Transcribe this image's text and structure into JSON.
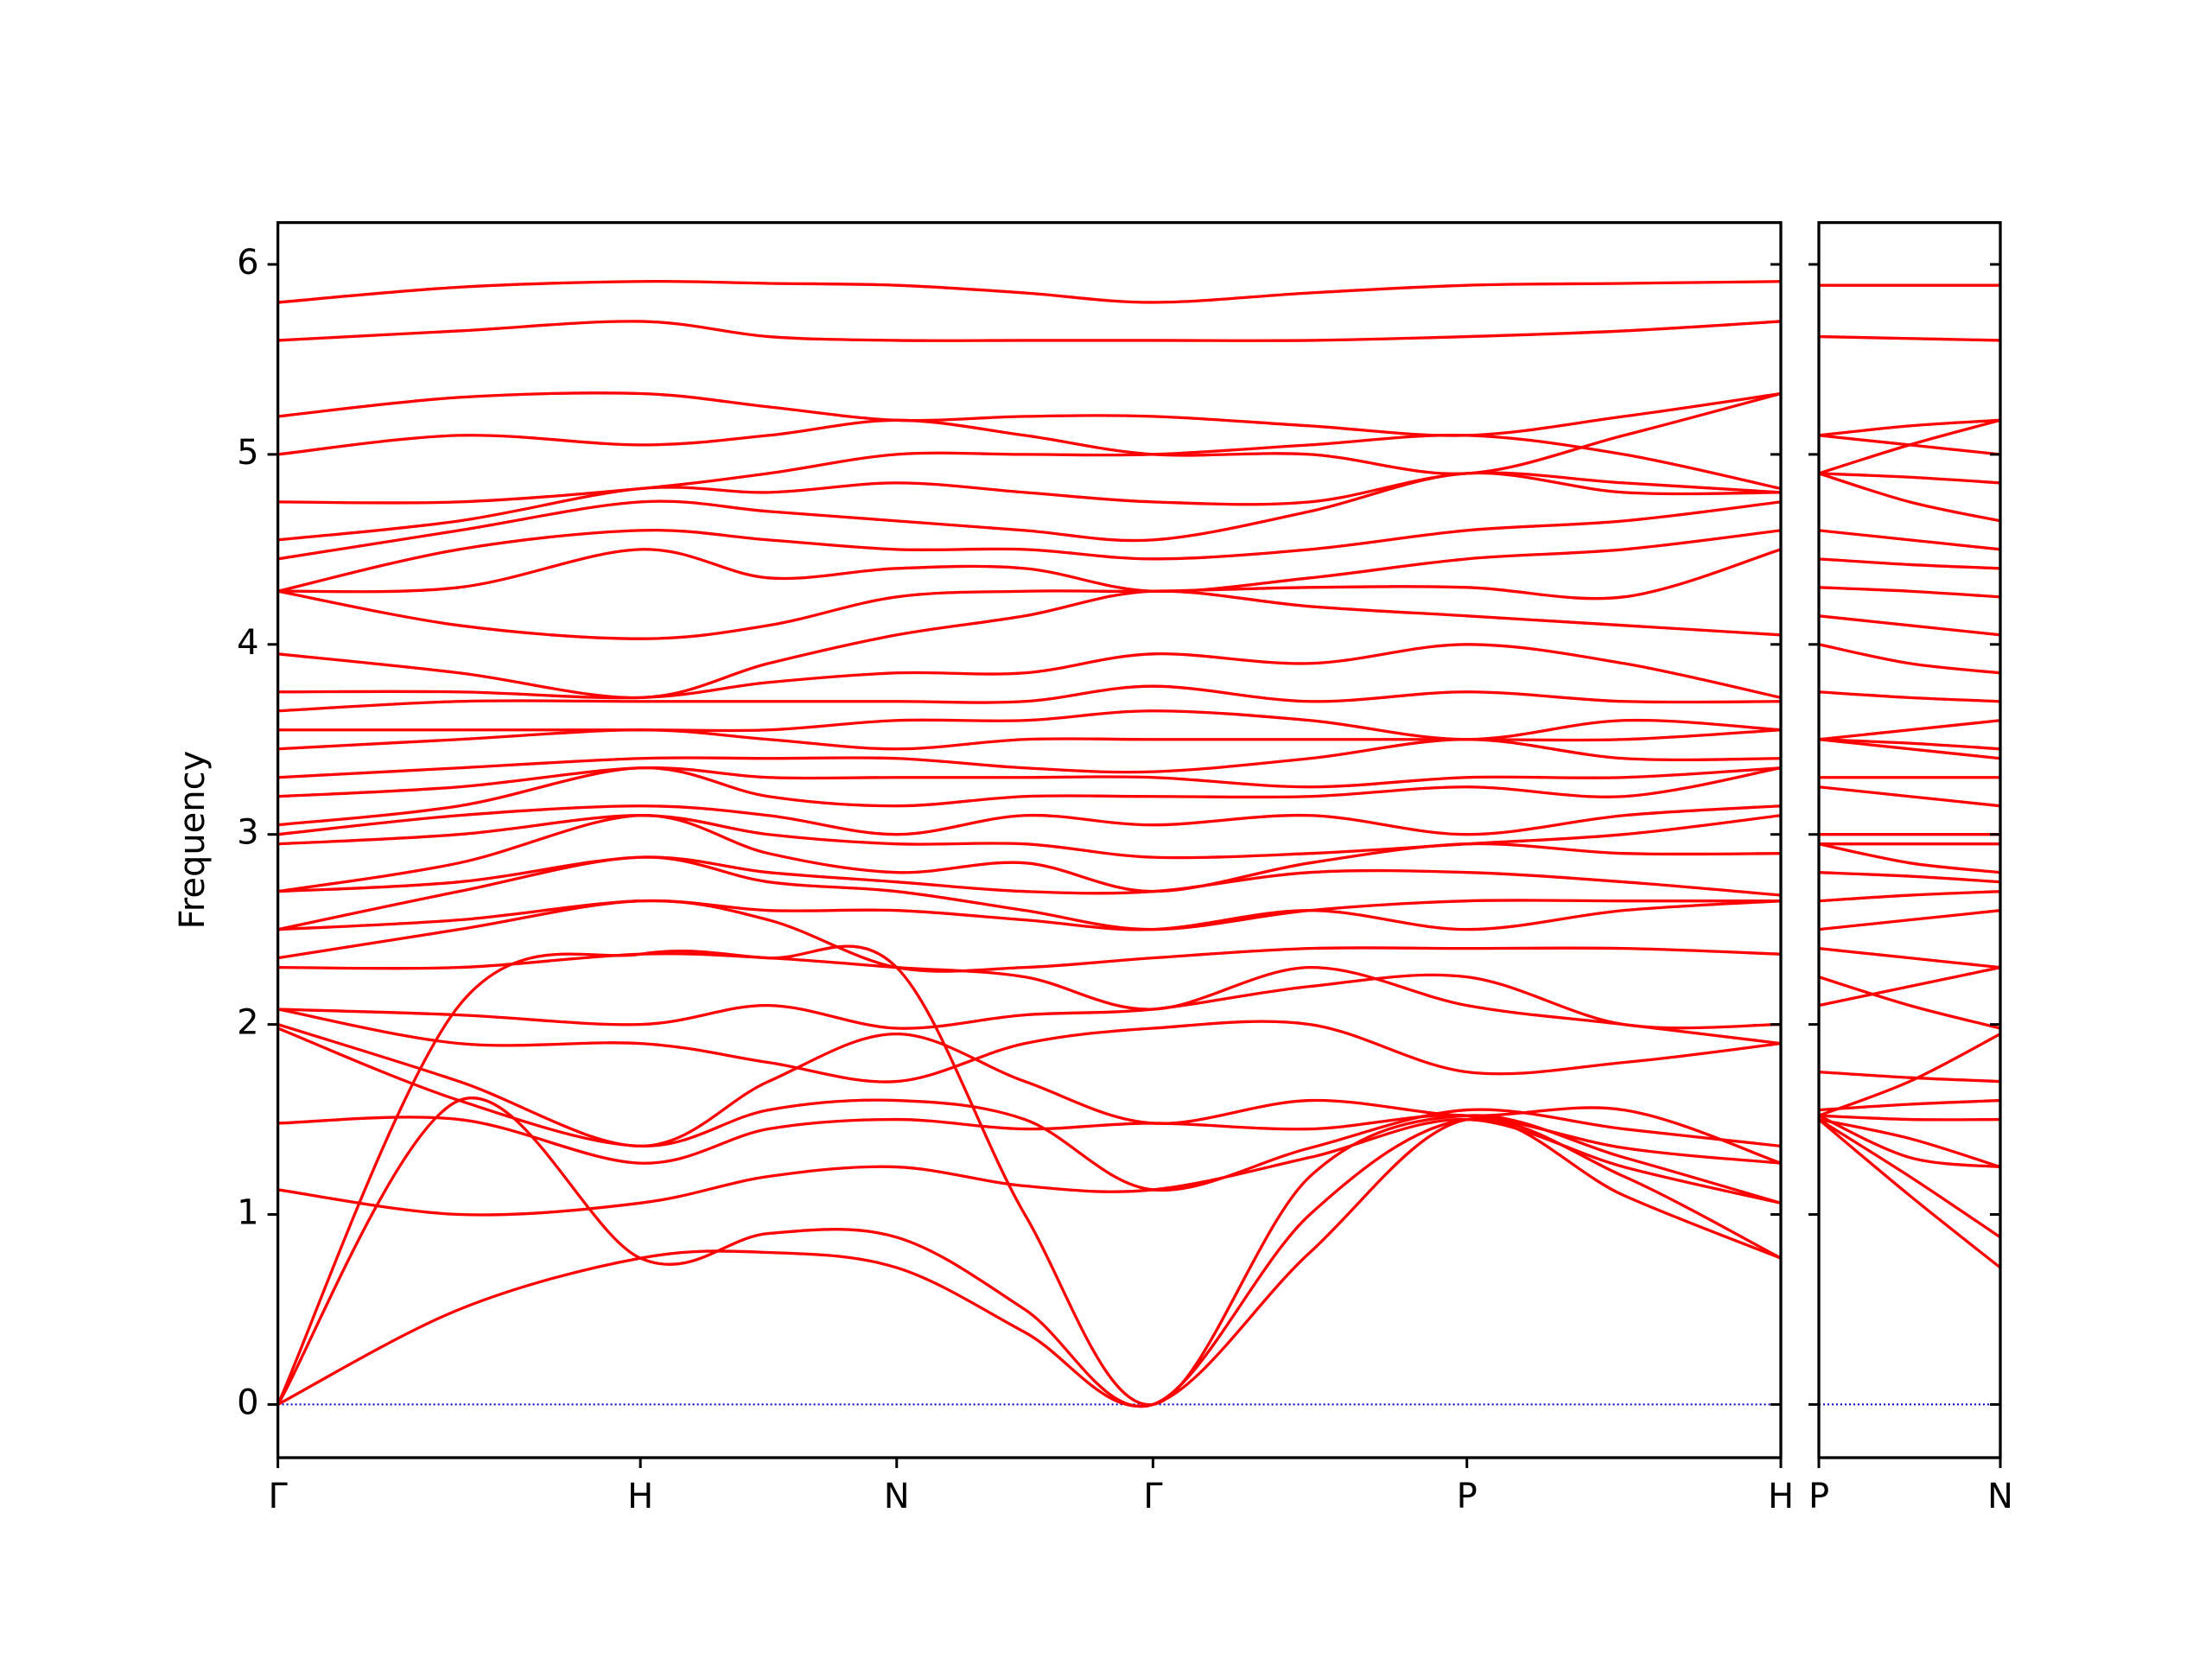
{
  "chart_data": [
    {
      "type": "line",
      "ylabel": "Frequency",
      "color": "#ff0000",
      "x": [
        0,
        0.5,
        1,
        1.3535,
        1.707,
        2.0605,
        2.414,
        2.847,
        3.28,
        3.713,
        4.146
      ],
      "xlim": [
        0,
        4.146
      ],
      "xticks": [
        {
          "value": 0,
          "label": "Γ"
        },
        {
          "value": 1,
          "label": "H"
        },
        {
          "value": 1.707,
          "label": "N"
        },
        {
          "value": 2.414,
          "label": "Γ"
        },
        {
          "value": 3.28,
          "label": "P"
        },
        {
          "value": 4.146,
          "label": "H"
        }
      ],
      "ylim": [
        -0.28,
        6.22
      ],
      "yticks": [
        0,
        1,
        2,
        3,
        4,
        5,
        6
      ],
      "ytick_labels": true,
      "reference_line": {
        "value": 0,
        "color": "#0000cc"
      },
      "series": [
        {
          "values": [
            0,
            0.5,
            0.77,
            0.8,
            0.72,
            0.38,
            0,
            0.8,
            1.5,
            1.1,
            0.77
          ]
        },
        {
          "values": [
            0,
            1.6,
            0.77,
            0.9,
            0.88,
            0.5,
            0,
            1.0,
            1.5,
            1.2,
            0.77
          ]
        },
        {
          "values": [
            0,
            2.1,
            2.37,
            2.35,
            2.3,
            1.0,
            0,
            1.2,
            1.52,
            1.3,
            1.06
          ]
        },
        {
          "values": [
            1.13,
            1.0,
            1.06,
            1.2,
            1.25,
            1.15,
            1.13,
            1.3,
            1.5,
            1.25,
            1.06
          ]
        },
        {
          "values": [
            1.48,
            1.5,
            1.27,
            1.45,
            1.5,
            1.45,
            1.48,
            1.45,
            1.52,
            1.35,
            1.27
          ]
        },
        {
          "values": [
            1.98,
            1.6,
            1.36,
            1.55,
            1.6,
            1.5,
            1.13,
            1.35,
            1.55,
            1.45,
            1.36
          ]
        },
        {
          "values": [
            2.0,
            1.7,
            1.36,
            1.7,
            1.95,
            1.7,
            1.48,
            1.6,
            1.52,
            1.55,
            1.27
          ]
        },
        {
          "values": [
            2.08,
            1.9,
            1.9,
            1.8,
            1.7,
            1.9,
            1.98,
            2.0,
            1.75,
            1.8,
            1.9
          ]
        },
        {
          "values": [
            2.08,
            2.05,
            2.0,
            2.1,
            1.98,
            2.05,
            2.08,
            2.2,
            2.25,
            2.0,
            2.0
          ]
        },
        {
          "values": [
            2.3,
            2.3,
            2.37,
            2.35,
            2.3,
            2.25,
            2.08,
            2.3,
            2.1,
            2.0,
            1.9
          ]
        },
        {
          "values": [
            2.35,
            2.5,
            2.65,
            2.55,
            2.3,
            2.3,
            2.35,
            2.4,
            2.4,
            2.4,
            2.37
          ]
        },
        {
          "values": [
            2.5,
            2.55,
            2.65,
            2.6,
            2.6,
            2.55,
            2.5,
            2.6,
            2.5,
            2.6,
            2.65
          ]
        },
        {
          "values": [
            2.5,
            2.7,
            2.88,
            2.75,
            2.7,
            2.6,
            2.5,
            2.6,
            2.65,
            2.65,
            2.65
          ]
        },
        {
          "values": [
            2.7,
            2.75,
            2.88,
            2.8,
            2.75,
            2.7,
            2.7,
            2.8,
            2.8,
            2.75,
            2.68
          ]
        },
        {
          "values": [
            2.7,
            2.85,
            3.1,
            2.9,
            2.8,
            2.85,
            2.7,
            2.85,
            2.95,
            2.9,
            2.9
          ]
        },
        {
          "values": [
            2.95,
            3.0,
            3.1,
            3.0,
            2.95,
            2.95,
            2.88,
            2.9,
            2.95,
            3.0,
            3.1
          ]
        },
        {
          "values": [
            3.0,
            3.1,
            3.15,
            3.1,
            3.0,
            3.1,
            3.05,
            3.1,
            3.0,
            3.1,
            3.15
          ]
        },
        {
          "values": [
            3.05,
            3.15,
            3.35,
            3.2,
            3.15,
            3.2,
            3.2,
            3.2,
            3.25,
            3.2,
            3.35
          ]
        },
        {
          "values": [
            3.2,
            3.25,
            3.35,
            3.3,
            3.3,
            3.3,
            3.3,
            3.25,
            3.3,
            3.3,
            3.35
          ]
        },
        {
          "values": [
            3.3,
            3.35,
            3.4,
            3.4,
            3.4,
            3.35,
            3.33,
            3.4,
            3.5,
            3.4,
            3.4
          ]
        },
        {
          "values": [
            3.45,
            3.5,
            3.55,
            3.5,
            3.45,
            3.5,
            3.5,
            3.5,
            3.5,
            3.5,
            3.55
          ]
        },
        {
          "values": [
            3.55,
            3.55,
            3.55,
            3.55,
            3.6,
            3.6,
            3.65,
            3.6,
            3.5,
            3.6,
            3.55
          ]
        },
        {
          "values": [
            3.65,
            3.7,
            3.7,
            3.7,
            3.7,
            3.7,
            3.78,
            3.7,
            3.75,
            3.7,
            3.7
          ]
        },
        {
          "values": [
            3.75,
            3.75,
            3.72,
            3.8,
            3.85,
            3.85,
            3.95,
            3.9,
            4.0,
            3.9,
            3.72
          ]
        },
        {
          "values": [
            3.95,
            3.85,
            3.72,
            3.9,
            4.05,
            4.15,
            4.28,
            4.2,
            4.15,
            4.1,
            4.05
          ]
        },
        {
          "values": [
            4.28,
            4.1,
            4.03,
            4.1,
            4.25,
            4.28,
            4.28,
            4.3,
            4.3,
            4.25,
            4.5
          ]
        },
        {
          "values": [
            4.28,
            4.3,
            4.5,
            4.35,
            4.4,
            4.4,
            4.28,
            4.35,
            4.45,
            4.5,
            4.6
          ]
        },
        {
          "values": [
            4.28,
            4.5,
            4.6,
            4.55,
            4.5,
            4.5,
            4.45,
            4.5,
            4.6,
            4.65,
            4.75
          ]
        },
        {
          "values": [
            4.45,
            4.6,
            4.75,
            4.7,
            4.65,
            4.6,
            4.55,
            4.7,
            4.9,
            4.8,
            4.8
          ]
        },
        {
          "values": [
            4.55,
            4.65,
            4.82,
            4.8,
            4.85,
            4.8,
            4.75,
            4.75,
            4.9,
            4.85,
            4.8
          ]
        },
        {
          "values": [
            4.75,
            4.75,
            4.82,
            4.9,
            5.0,
            5.0,
            5.0,
            5.05,
            5.1,
            5.0,
            4.82
          ]
        },
        {
          "values": [
            5.0,
            5.1,
            5.05,
            5.1,
            5.18,
            5.1,
            5.0,
            5.0,
            4.9,
            5.1,
            5.32
          ]
        },
        {
          "values": [
            5.2,
            5.3,
            5.32,
            5.25,
            5.18,
            5.2,
            5.2,
            5.15,
            5.1,
            5.2,
            5.32
          ]
        },
        {
          "values": [
            5.6,
            5.65,
            5.7,
            5.62,
            5.6,
            5.6,
            5.6,
            5.6,
            5.62,
            5.65,
            5.7
          ]
        },
        {
          "values": [
            5.8,
            5.88,
            5.91,
            5.9,
            5.89,
            5.85,
            5.8,
            5.85,
            5.89,
            5.9,
            5.91
          ]
        }
      ]
    },
    {
      "type": "line",
      "color": "#ff0000",
      "x": [
        0,
        0.25,
        0.5
      ],
      "xlim": [
        0,
        0.5
      ],
      "xticks": [
        {
          "value": 0,
          "label": "P"
        },
        {
          "value": 0.5,
          "label": "N"
        }
      ],
      "ylim": [
        -0.28,
        6.22
      ],
      "yticks": [
        0,
        1,
        2,
        3,
        4,
        5,
        6
      ],
      "ytick_labels": false,
      "reference_line": {
        "value": 0,
        "color": "#0000cc"
      },
      "series": [
        {
          "values": [
            1.5,
            1.1,
            0.72
          ]
        },
        {
          "values": [
            1.5,
            1.2,
            0.88
          ]
        },
        {
          "values": [
            1.52,
            1.3,
            1.25
          ]
        },
        {
          "values": [
            1.5,
            1.4,
            1.25
          ]
        },
        {
          "values": [
            1.52,
            1.5,
            1.5
          ]
        },
        {
          "values": [
            1.55,
            1.58,
            1.6
          ]
        },
        {
          "values": [
            1.52,
            1.7,
            1.95
          ]
        },
        {
          "values": [
            1.75,
            1.72,
            1.7
          ]
        },
        {
          "values": [
            2.25,
            2.1,
            1.98
          ]
        },
        {
          "values": [
            2.1,
            2.2,
            2.3
          ]
        },
        {
          "values": [
            2.4,
            2.35,
            2.3
          ]
        },
        {
          "values": [
            2.5,
            2.55,
            2.6
          ]
        },
        {
          "values": [
            2.65,
            2.68,
            2.7
          ]
        },
        {
          "values": [
            2.8,
            2.78,
            2.75
          ]
        },
        {
          "values": [
            2.95,
            2.85,
            2.8
          ]
        },
        {
          "values": [
            2.95,
            2.95,
            2.95
          ]
        },
        {
          "values": [
            3.0,
            3.0,
            3.0
          ]
        },
        {
          "values": [
            3.25,
            3.2,
            3.15
          ]
        },
        {
          "values": [
            3.3,
            3.3,
            3.3
          ]
        },
        {
          "values": [
            3.5,
            3.45,
            3.4
          ]
        },
        {
          "values": [
            3.5,
            3.48,
            3.45
          ]
        },
        {
          "values": [
            3.5,
            3.55,
            3.6
          ]
        },
        {
          "values": [
            3.75,
            3.72,
            3.7
          ]
        },
        {
          "values": [
            4.0,
            3.9,
            3.85
          ]
        },
        {
          "values": [
            4.15,
            4.1,
            4.05
          ]
        },
        {
          "values": [
            4.3,
            4.28,
            4.25
          ]
        },
        {
          "values": [
            4.45,
            4.42,
            4.4
          ]
        },
        {
          "values": [
            4.6,
            4.55,
            4.5
          ]
        },
        {
          "values": [
            4.9,
            4.75,
            4.65
          ]
        },
        {
          "values": [
            4.9,
            4.88,
            4.85
          ]
        },
        {
          "values": [
            5.1,
            5.05,
            5.0
          ]
        },
        {
          "values": [
            4.9,
            5.05,
            5.18
          ]
        },
        {
          "values": [
            5.1,
            5.15,
            5.18
          ]
        },
        {
          "values": [
            5.62,
            5.61,
            5.6
          ]
        },
        {
          "values": [
            5.89,
            5.89,
            5.89
          ]
        }
      ]
    }
  ]
}
